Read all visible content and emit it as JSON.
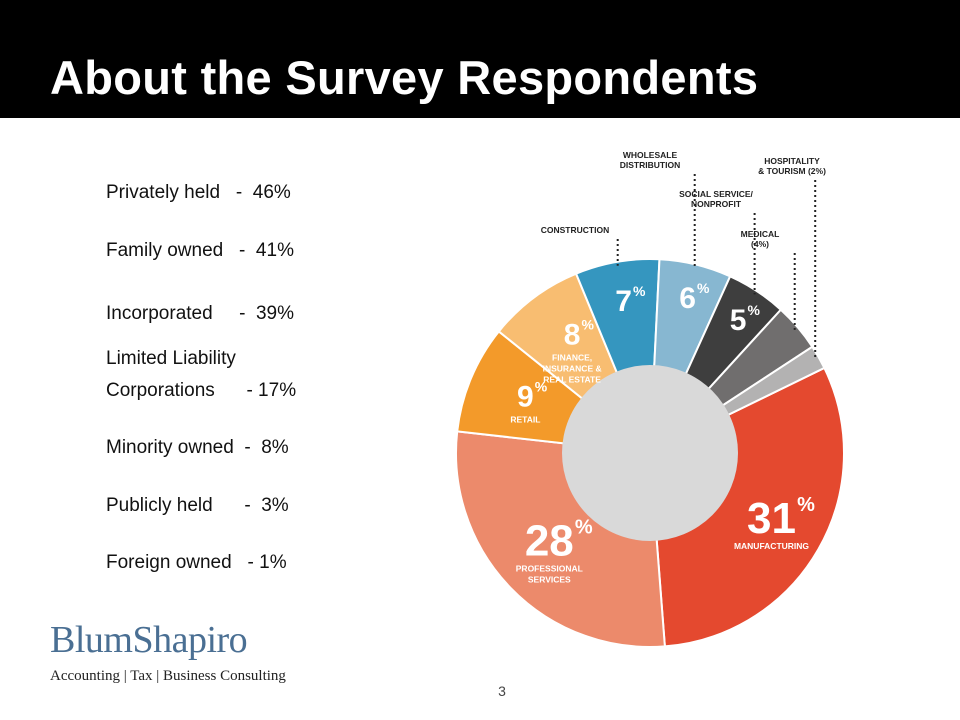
{
  "slide": {
    "title": "About the Survey Respondents",
    "page_number": "3"
  },
  "stats": [
    {
      "text": "Privately held   -  46%"
    },
    {
      "text": "Family owned   -  41%"
    },
    {
      "text": "Incorporated     -  39%"
    },
    {
      "text": "Limited Liability"
    },
    {
      "text": "Corporations      - 17%"
    },
    {
      "text": "Minority owned  -  8%"
    },
    {
      "text": "Publicly held      -  3%"
    },
    {
      "text": "Foreign owned   - 1%"
    }
  ],
  "logo": {
    "name": "BlumShapiro",
    "tagline": "Accounting | Tax | Business Consulting"
  },
  "chart_data": {
    "type": "pie",
    "donut": true,
    "categories": [
      "MANUFACTURING",
      "PROFESSIONAL SERVICES",
      "RETAIL",
      "FINANCE, INSURANCE & REAL ESTATE",
      "CONSTRUCTION",
      "WHOLESALE DISTRIBUTION",
      "SOCIAL SERVICE/ NONPROFIT",
      "MEDICAL (4%)",
      "HOSPITALITY & TOURISM (2%)"
    ],
    "values": [
      31,
      28,
      9,
      8,
      7,
      6,
      5,
      4,
      2
    ],
    "colors": [
      "#e4492f",
      "#ec8a6b",
      "#f39a2a",
      "#f8bd71",
      "#3596bf",
      "#87b7d1",
      "#3e3e3e",
      "#706e6e",
      "#b3b2b2"
    ],
    "labels": [
      {
        "big": "31",
        "sup": "%",
        "caption": [
          "MANUFACTURING"
        ]
      },
      {
        "big": "28",
        "sup": "%",
        "caption": [
          "PROFESSIONAL",
          "SERVICES"
        ]
      },
      {
        "big": "9",
        "sup": "%",
        "caption": [
          "RETAIL"
        ]
      },
      {
        "big": "8",
        "sup": "%",
        "caption": [
          "FINANCE,",
          "INSURANCE &",
          "REAL ESTATE"
        ]
      },
      {
        "big": "7",
        "sup": "%",
        "caption": []
      },
      {
        "big": "6",
        "sup": "%",
        "caption": []
      },
      {
        "big": "5",
        "sup": "%",
        "caption": []
      }
    ],
    "callouts": [
      {
        "text": [
          "CONSTRUCTION"
        ]
      },
      {
        "text": [
          "WHOLESALE",
          "DISTRIBUTION"
        ]
      },
      {
        "text": [
          "SOCIAL SERVICE/",
          "NONPROFIT"
        ]
      },
      {
        "text": [
          "MEDICAL",
          "(4%)"
        ]
      },
      {
        "text": [
          "HOSPITALITY",
          "& TOURISM (2%)"
        ]
      }
    ],
    "center_color": "#d9d9d9"
  }
}
